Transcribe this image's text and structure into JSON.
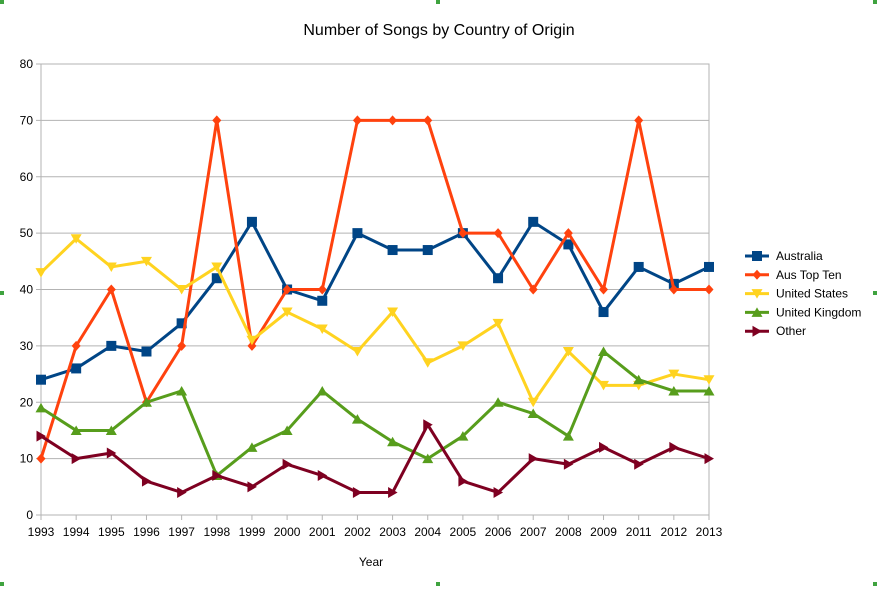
{
  "chart_data": {
    "type": "line",
    "title": "Number of Songs by Country of Origin",
    "xlabel": "Year",
    "ylabel": "",
    "ylim": [
      0,
      80
    ],
    "yticks": [
      0,
      10,
      20,
      30,
      40,
      50,
      60,
      70,
      80
    ],
    "grid": true,
    "legend_position": "right",
    "categories": [
      "1993",
      "1994",
      "1995",
      "1996",
      "1997",
      "1998",
      "1999",
      "2000",
      "2001",
      "2002",
      "2003",
      "2004",
      "2005",
      "2006",
      "2007",
      "2008",
      "2009",
      "2011",
      "2012",
      "2013"
    ],
    "series": [
      {
        "name": "Australia",
        "color": "#004586",
        "marker": "square",
        "values": [
          24,
          26,
          30,
          29,
          34,
          42,
          52,
          40,
          38,
          50,
          47,
          47,
          50,
          42,
          52,
          48,
          36,
          44,
          41,
          44
        ]
      },
      {
        "name": "Aus Top Ten",
        "color": "#ff420e",
        "marker": "diamond",
        "values": [
          10,
          30,
          40,
          20,
          30,
          70,
          30,
          40,
          40,
          70,
          70,
          70,
          50,
          50,
          40,
          50,
          40,
          70,
          40,
          40
        ]
      },
      {
        "name": "United States",
        "color": "#ffd320",
        "marker": "triangle-down",
        "values": [
          43,
          49,
          44,
          45,
          40,
          44,
          31,
          36,
          33,
          29,
          36,
          27,
          30,
          34,
          20,
          29,
          23,
          23,
          25,
          24
        ]
      },
      {
        "name": "United Kingdom",
        "color": "#579d1c",
        "marker": "triangle-up",
        "values": [
          19,
          15,
          15,
          20,
          22,
          7,
          12,
          15,
          22,
          17,
          13,
          10,
          14,
          20,
          18,
          14,
          29,
          24,
          22,
          22
        ]
      },
      {
        "name": "Other",
        "color": "#7e0021",
        "marker": "triangle-right",
        "values": [
          14,
          10,
          11,
          6,
          4,
          7,
          5,
          9,
          7,
          4,
          4,
          16,
          6,
          4,
          10,
          9,
          12,
          9,
          12,
          10
        ]
      }
    ]
  }
}
